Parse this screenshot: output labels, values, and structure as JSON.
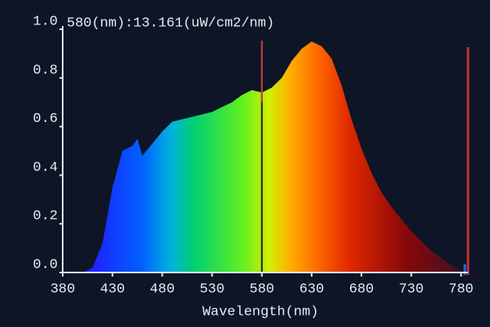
{
  "chart_data": {
    "type": "area",
    "title": "580(nm):13.161(uW/cm2/nm)",
    "cursor_x": 580,
    "x_label": "Wavelength(nm)",
    "x": [
      400,
      410,
      420,
      430,
      440,
      450,
      455,
      460,
      470,
      480,
      490,
      500,
      510,
      520,
      530,
      540,
      550,
      560,
      570,
      580,
      590,
      600,
      610,
      620,
      630,
      635,
      640,
      650,
      660,
      670,
      680,
      690,
      700,
      710,
      720,
      730,
      740,
      750,
      760,
      770,
      780
    ],
    "values": [
      0,
      0.02,
      0.12,
      0.35,
      0.5,
      0.52,
      0.55,
      0.48,
      0.53,
      0.58,
      0.62,
      0.63,
      0.64,
      0.65,
      0.66,
      0.68,
      0.7,
      0.73,
      0.75,
      0.74,
      0.76,
      0.8,
      0.87,
      0.92,
      0.95,
      0.94,
      0.93,
      0.88,
      0.77,
      0.63,
      0.51,
      0.41,
      0.33,
      0.27,
      0.22,
      0.17,
      0.13,
      0.09,
      0.06,
      0.03,
      0.01
    ],
    "xlim": [
      380,
      787
    ],
    "xticks": [
      380,
      430,
      480,
      530,
      580,
      630,
      680,
      730,
      780
    ],
    "ylim": [
      0,
      1
    ],
    "yticks": [
      {
        "value": 0,
        "label": "0.0"
      },
      0.2,
      0.4,
      0.6,
      0.8,
      {
        "value": 1,
        "label": "1.0"
      }
    ]
  }
}
